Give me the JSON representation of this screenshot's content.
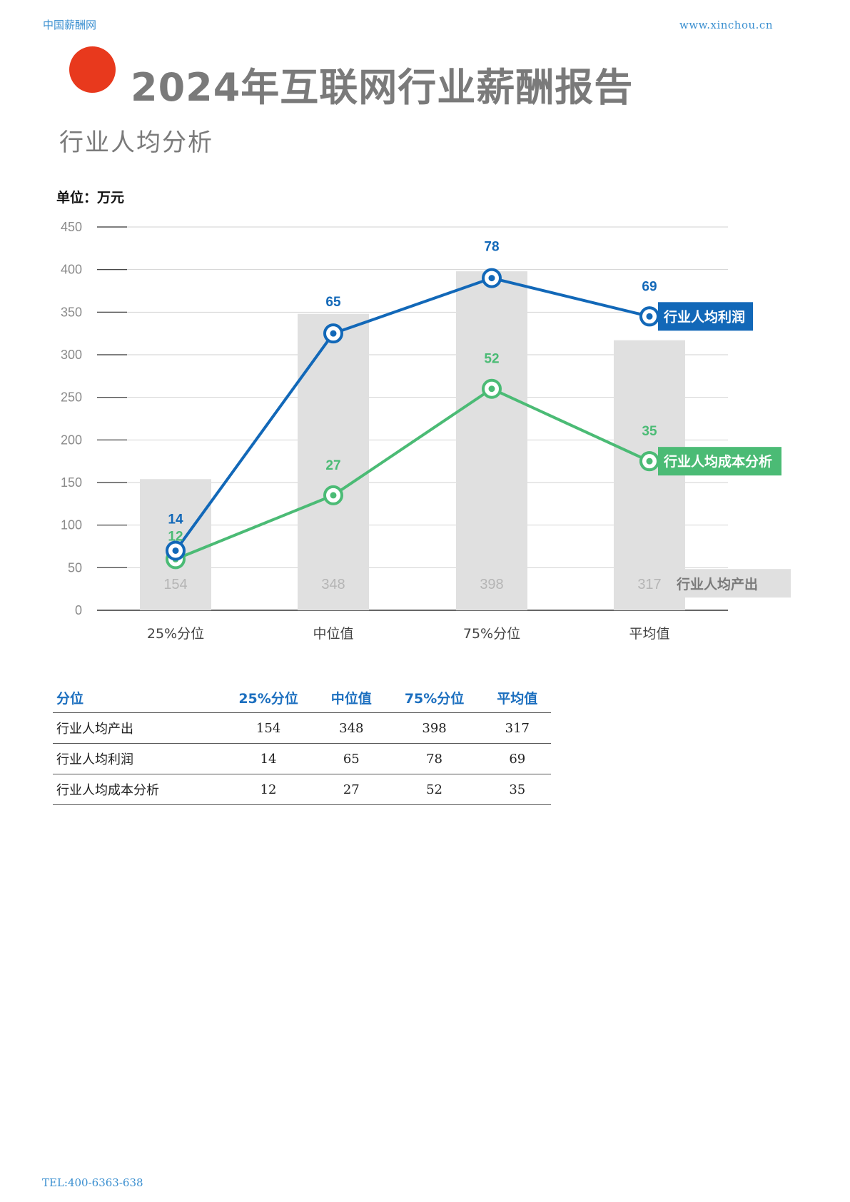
{
  "header": {
    "left_text": "中国薪酬网",
    "right_text": "www.xinchou.cn"
  },
  "title": "2024年互联网行业薪酬报告",
  "subtitle": "行业人均分析",
  "unit_label": "单位：万元",
  "colors": {
    "accent_dot": "#e8391d",
    "profit": "#1268b8",
    "cost": "#4bbb75",
    "bar": "#e0e0e0",
    "bar_label": "#b5b5b5"
  },
  "chart_data": {
    "type": "bar+line",
    "categories": [
      "25%分位",
      "中位值",
      "75%分位",
      "平均值"
    ],
    "ylim": [
      0,
      450
    ],
    "yticks": [
      0,
      50,
      100,
      150,
      200,
      250,
      300,
      350,
      400,
      450
    ],
    "grid": true,
    "bar_series": {
      "name": "行业人均产出",
      "values": [
        154,
        348,
        398,
        317
      ],
      "color": "#e0e0e0"
    },
    "line_series": [
      {
        "name": "行业人均利润",
        "labels": [
          14,
          65,
          78,
          69
        ],
        "plotted_values": [
          70,
          325,
          390,
          345
        ],
        "color": "#1268b8"
      },
      {
        "name": "行业人均成本分析",
        "labels": [
          12,
          27,
          52,
          35
        ],
        "plotted_values": [
          60,
          135,
          260,
          175
        ],
        "color": "#4bbb75"
      }
    ]
  },
  "table": {
    "headers": [
      "分位",
      "25%分位",
      "中位值",
      "75%分位",
      "平均值"
    ],
    "rows": [
      {
        "name": "行业人均产出",
        "values": [
          "154",
          "348",
          "398",
          "317"
        ]
      },
      {
        "name": "行业人均利润",
        "values": [
          "14",
          "65",
          "78",
          "69"
        ]
      },
      {
        "name": "行业人均成本分析",
        "values": [
          "12",
          "27",
          "52",
          "35"
        ]
      }
    ]
  },
  "footer": {
    "tel": "TEL:400-6363-638"
  }
}
